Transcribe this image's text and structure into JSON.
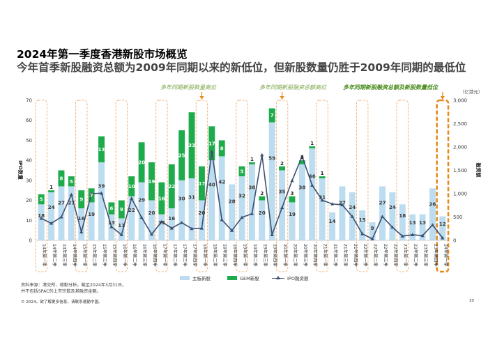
{
  "title": "2024年第一季度香港新股市场概览",
  "subtitle": "今年首季新股融资总额为2009年同期以来的新低位，但新股数量仍胜于2009年同期的最低位",
  "unit_right": "（亿港元）",
  "annotations": [
    "多年同期新股数量高位",
    "多年同期新股融资总额高位",
    "多年同期新股融资总额及新股数量低位"
  ],
  "footnotes": [
    "资料来源：港交所、德勤分析，截至2024年3月31日。",
    "并不包括SPAC的上市宗数及其融资金额。"
  ],
  "copyright": "© 2024。欲了解更多信息，请联系德勤中国。",
  "page_number": "10",
  "colors": {
    "main": "#bcdcf0",
    "gem": "#1eab4b",
    "line": "#3d4f6f",
    "highlight": "#f2b27a",
    "highlight_strong": "#e8891c",
    "annotation": "#7aa547",
    "annotation_strong": "#4a8c1c"
  },
  "chart_data": {
    "type": "bar",
    "stacked": true,
    "y_left_label": "IPO数量",
    "y_right_label": "融资额",
    "ylim_left": [
      0,
      70
    ],
    "ylim_right": [
      0,
      3000
    ],
    "yticks_left": [
      0,
      10,
      20,
      30,
      40,
      50,
      60,
      70
    ],
    "yticks_right": [
      "0",
      "500",
      "1,000",
      "1,500",
      "2,000",
      "2,500",
      "3,000"
    ],
    "categories": [
      "14年第一季",
      "14年第二季",
      "14年第三季",
      "14年第四季",
      "15年第一季",
      "15年第二季",
      "15年第三季",
      "15年第四季",
      "16年第一季",
      "16年第二季",
      "16年第三季",
      "16年第四季",
      "17年第一季",
      "17年第二季",
      "17年第三季",
      "17年第四季",
      "18年第一季",
      "18年第二季",
      "18年第三季",
      "18年第四季",
      "19年第一季",
      "19年第二季",
      "19年第三季",
      "19年第四季",
      "20年第一季",
      "20年第二季",
      "20年第三季",
      "20年第四季",
      "21年第一季",
      "21年第二季",
      "21年第三季",
      "21年第四季",
      "22年第一季",
      "22年第二季",
      "22年第三季",
      "22年第四季",
      "23年第一季",
      "23年第二季",
      "23年第三季",
      "23年第四季",
      "24年第一季"
    ],
    "series": [
      {
        "name": "主板新股",
        "values": [
          18,
          24,
          27,
          27,
          16,
          19,
          39,
          13,
          11,
          22,
          29,
          20,
          13,
          16,
          30,
          31,
          20,
          40,
          42,
          28,
          32,
          38,
          20,
          59,
          35,
          19,
          38,
          46,
          31,
          14,
          27,
          24,
          15,
          9,
          27,
          24,
          18,
          13,
          13,
          26,
          12
        ]
      },
      {
        "name": "GEM新股",
        "values": [
          5,
          1,
          8,
          5,
          9,
          7,
          13,
          6,
          9,
          10,
          20,
          19,
          16,
          22,
          25,
          33,
          17,
          17,
          8,
          0,
          5,
          1,
          2,
          7,
          2,
          3,
          2,
          1,
          1,
          0,
          0,
          0,
          0,
          0,
          0,
          0,
          0,
          0,
          0,
          0,
          0
        ]
      },
      {
        "name": "IPO融资额",
        "values": [
          470,
          365,
          500,
          980,
          180,
          1000,
          1010,
          290,
          120,
          900,
          490,
          130,
          400,
          260,
          380,
          250,
          260,
          1900,
          440,
          210,
          490,
          570,
          1830,
          120,
          700,
          1280,
          1800,
          1180,
          860,
          780,
          760,
          510,
          140,
          30,
          510,
          280,
          90,
          120,
          100,
          330,
          50
        ]
      }
    ],
    "main_labels": [
      18,
      24,
      27,
      27,
      16,
      19,
      39,
      13,
      11,
      22,
      29,
      20,
      13,
      16,
      30,
      31,
      20,
      40,
      42,
      28,
      32,
      38,
      20,
      59,
      35,
      19,
      38,
      46,
      31,
      14,
      27,
      24,
      15,
      9,
      27,
      24,
      18,
      13,
      13,
      26,
      12
    ],
    "gem_labels": [
      5,
      1,
      8,
      5,
      9,
      7,
      13,
      6,
      9,
      10,
      20,
      19,
      16,
      22,
      25,
      33,
      17,
      17,
      8,
      null,
      5,
      1,
      2,
      7,
      2,
      3,
      2,
      1,
      1,
      null,
      null,
      null,
      null,
      null,
      null,
      null,
      null,
      null,
      null,
      null,
      null
    ],
    "highlight_groups": [
      {
        "start": 0,
        "count": 1
      },
      {
        "start": 4,
        "count": 1
      },
      {
        "start": 8,
        "count": 1
      },
      {
        "start": 12,
        "count": 1
      },
      {
        "start": 16,
        "count": 1
      },
      {
        "start": 20,
        "count": 1
      },
      {
        "start": 24,
        "count": 1
      },
      {
        "start": 28,
        "count": 1
      },
      {
        "start": 32,
        "count": 1
      },
      {
        "start": 36,
        "count": 1
      },
      {
        "start": 40,
        "count": 1,
        "strong": true
      }
    ],
    "annotation_arrows": [
      16,
      24,
      40
    ],
    "legend_position": "bottom"
  }
}
